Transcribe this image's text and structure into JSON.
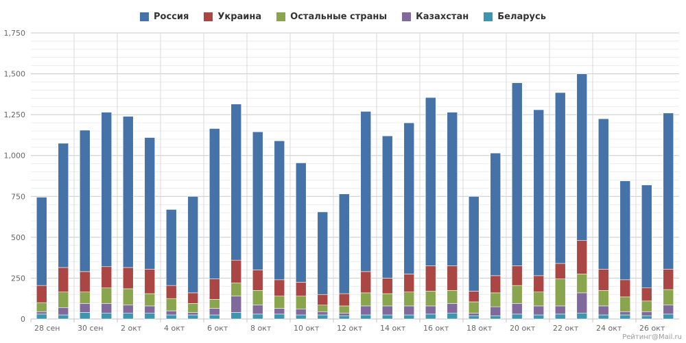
{
  "chart_data": {
    "type": "bar",
    "stacked": true,
    "categories": [
      "28 сен",
      "29 сен",
      "30 сен",
      "1 окт",
      "2 окт",
      "3 окт",
      "4 окт",
      "5 окт",
      "6 окт",
      "7 окт",
      "8 окт",
      "9 окт",
      "10 окт",
      "11 окт",
      "12 окт",
      "13 окт",
      "14 окт",
      "15 окт",
      "16 окт",
      "17 окт",
      "18 окт",
      "19 окт",
      "20 окт",
      "21 окт",
      "22 окт",
      "23 окт",
      "24 окт",
      "25 окт",
      "26 окт",
      "27 окт"
    ],
    "series": [
      {
        "name": "Беларусь",
        "color": "#3d96ae",
        "values": [
          30,
          25,
          40,
          35,
          35,
          35,
          25,
          25,
          25,
          40,
          30,
          30,
          25,
          25,
          20,
          25,
          25,
          25,
          30,
          35,
          20,
          20,
          30,
          25,
          30,
          35,
          25,
          25,
          20,
          30
        ]
      },
      {
        "name": "Казахстан",
        "color": "#80699b",
        "values": [
          15,
          45,
          55,
          60,
          50,
          45,
          25,
          15,
          40,
          100,
          55,
          35,
          35,
          20,
          15,
          55,
          55,
          55,
          50,
          60,
          15,
          55,
          65,
          55,
          50,
          125,
          55,
          20,
          25,
          55
        ]
      },
      {
        "name": "Остальные страны",
        "color": "#89a54e",
        "values": [
          55,
          95,
          70,
          95,
          100,
          75,
          75,
          55,
          55,
          80,
          90,
          75,
          80,
          40,
          45,
          80,
          75,
          85,
          90,
          80,
          70,
          85,
          110,
          85,
          165,
          115,
          95,
          90,
          65,
          95
        ]
      },
      {
        "name": "Украина",
        "color": "#aa4643",
        "values": [
          105,
          150,
          125,
          130,
          130,
          150,
          80,
          65,
          125,
          140,
          125,
          100,
          85,
          65,
          75,
          130,
          95,
          110,
          155,
          150,
          65,
          105,
          120,
          100,
          95,
          205,
          130,
          105,
          80,
          125
        ]
      },
      {
        "name": "Россия",
        "color": "#4572a7",
        "values": [
          540,
          760,
          865,
          945,
          925,
          805,
          465,
          590,
          920,
          955,
          845,
          850,
          730,
          505,
          610,
          980,
          870,
          925,
          1030,
          940,
          580,
          750,
          1120,
          1015,
          1045,
          1020,
          920,
          605,
          630,
          955
        ]
      }
    ],
    "legend": [
      "Россия",
      "Украина",
      "Остальные страны",
      "Казахстан",
      "Беларусь"
    ],
    "xticks": [
      "28 сен",
      "30 сен",
      "2 окт",
      "4 окт",
      "6 окт",
      "8 окт",
      "10 окт",
      "12 окт",
      "14 окт",
      "16 окт",
      "18 окт",
      "20 окт",
      "22 окт",
      "24 окт",
      "26 окт"
    ],
    "ylim": [
      0,
      1750
    ],
    "yticks": [
      0,
      250,
      500,
      750,
      1000,
      1250,
      1500,
      1750
    ],
    "ytick_labels": [
      "0",
      "250",
      "500",
      "750",
      "1,000",
      "1,250",
      "1,500",
      "1,750"
    ],
    "grid": true,
    "legend_position": "top-center",
    "xlabel": "",
    "ylabel": ""
  },
  "credit": "Рейтинг@Mail.ru"
}
